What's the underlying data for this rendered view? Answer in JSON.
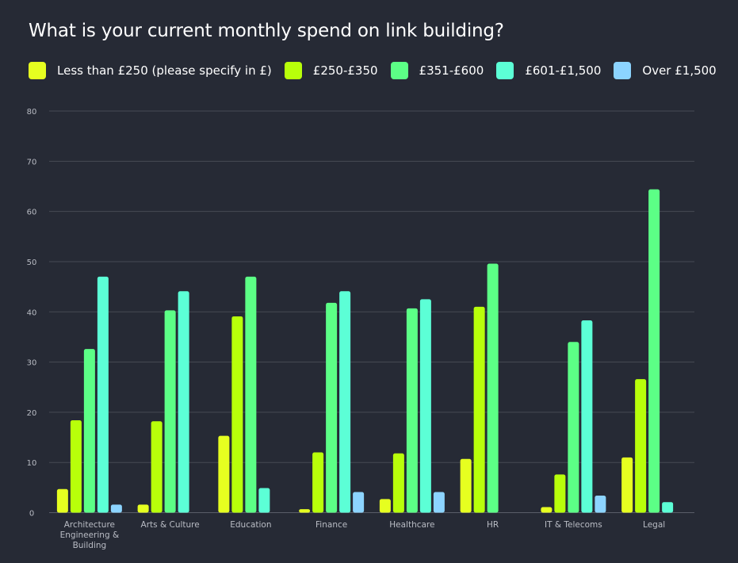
{
  "chart_data": {
    "type": "bar",
    "title": "What is your current monthly spend on link building?",
    "xlabel": "",
    "ylabel": "",
    "ylim": [
      0,
      80
    ],
    "yticks": [
      0,
      10,
      20,
      30,
      40,
      50,
      60,
      70,
      80
    ],
    "grid": true,
    "legend_position": "top",
    "categories": [
      "Architecture Engineering & Building",
      "Arts & Culture",
      "Education",
      "Finance",
      "Healthcare",
      "HR",
      "IT & Telecoms",
      "Legal"
    ],
    "category_label_lines": [
      [
        "Architecture",
        "Engineering &",
        "Building"
      ],
      [
        "Arts & Culture"
      ],
      [
        "Education"
      ],
      [
        "Finance"
      ],
      [
        "Healthcare"
      ],
      [
        "HR"
      ],
      [
        "IT & Telecoms"
      ],
      [
        "Legal"
      ]
    ],
    "series": [
      {
        "name": "Less than £250 (please specify in £)",
        "color": "#e6ff20",
        "values": [
          4.7,
          1.6,
          15.3,
          0.7,
          2.7,
          10.7,
          1.1,
          11.0
        ]
      },
      {
        "name": "£250-£350",
        "color": "#b8ff0a",
        "values": [
          18.4,
          18.2,
          39.1,
          12.0,
          11.8,
          41.0,
          7.6,
          26.6
        ]
      },
      {
        "name": "£351-£600",
        "color": "#5cff86",
        "values": [
          32.6,
          40.3,
          47.0,
          41.8,
          40.7,
          49.6,
          34.0,
          64.4
        ]
      },
      {
        "name": "£601-£1,500",
        "color": "#5cffd6",
        "values": [
          47.0,
          44.1,
          4.9,
          44.1,
          42.5,
          0,
          38.3,
          2.1
        ]
      },
      {
        "name": "Over £1,500",
        "color": "#8cd4ff",
        "values": [
          1.6,
          0,
          0,
          4.1,
          4.1,
          0,
          3.4,
          0
        ]
      }
    ]
  }
}
